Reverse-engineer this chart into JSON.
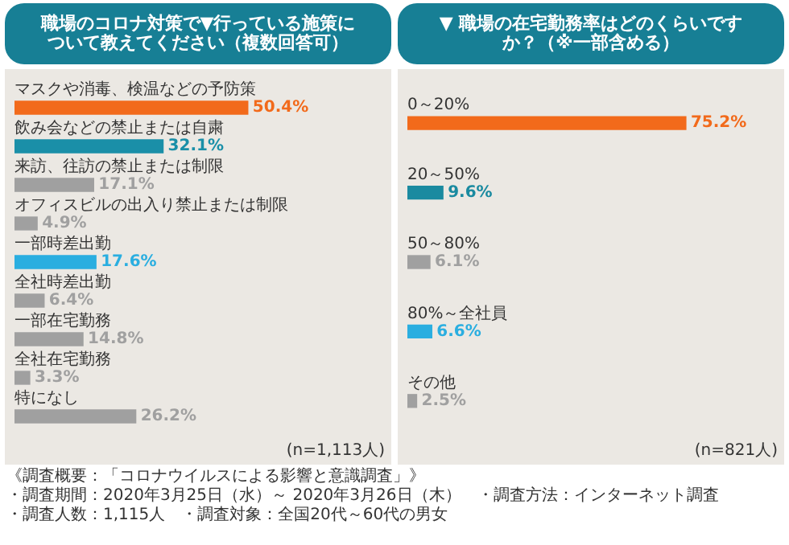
{
  "chart_data": [
    {
      "type": "bar",
      "orientation": "horizontal",
      "tick_labels": false,
      "title": "職場のコロナ対策で▼行っている施策について教えてください（複数回答可）",
      "categories": [
        "マスクや消毒、検温などの予防策",
        "飲み会などの禁止または自粛",
        "来訪、往訪の禁止または制限",
        "オフィスビルの出入り禁止または制限",
        "一部時差出勤",
        "全社時差出勤",
        "一部在宅勤務",
        "全社在宅勤務",
        "特になし"
      ],
      "values": [
        50.4,
        32.1,
        17.1,
        4.9,
        17.6,
        6.4,
        14.8,
        3.3,
        26.2
      ],
      "colors": [
        "#f26a1b",
        "#1a8fa8",
        "#a0a0a0",
        "#a0a0a0",
        "#2aaee0",
        "#a0a0a0",
        "#a0a0a0",
        "#a0a0a0",
        "#a0a0a0"
      ],
      "value_labels": [
        "50.4%",
        "32.1%",
        "17.1%",
        "4.9%",
        "17.6%",
        "6.4%",
        "14.8%",
        "3.3%",
        "26.2%"
      ],
      "annotations": [
        "(n=1,113人)",
        "《調査概要：「コロナウイルスによる影響と意識調査」》",
        "・調査期間：2020年3月25日（水）～ 2020年3月26日（木）",
        "・調査方法：インターネット調査",
        "・調査人数：1,115人",
        "・調査対象：全国20代～60代の男女"
      ]
    },
    {
      "type": "bar",
      "orientation": "horizontal",
      "tick_labels": false,
      "title": "▼ 職場の在宅勤務率はどのくらいですか？（※一部含める）",
      "categories": [
        "0～20%",
        "20～50%",
        "50～80%",
        "80%～全社員",
        "その他"
      ],
      "values": [
        75.2,
        9.6,
        6.1,
        6.6,
        2.5
      ],
      "colors": [
        "#f26a1b",
        "#1a8aa0",
        "#a0a0a0",
        "#2aaee0",
        "#a0a0a0"
      ],
      "value_labels": [
        "75.2%",
        "9.6%",
        "6.1%",
        "6.6%",
        "2.5%"
      ],
      "annotations": [
        "(n=821人)"
      ]
    }
  ]
}
